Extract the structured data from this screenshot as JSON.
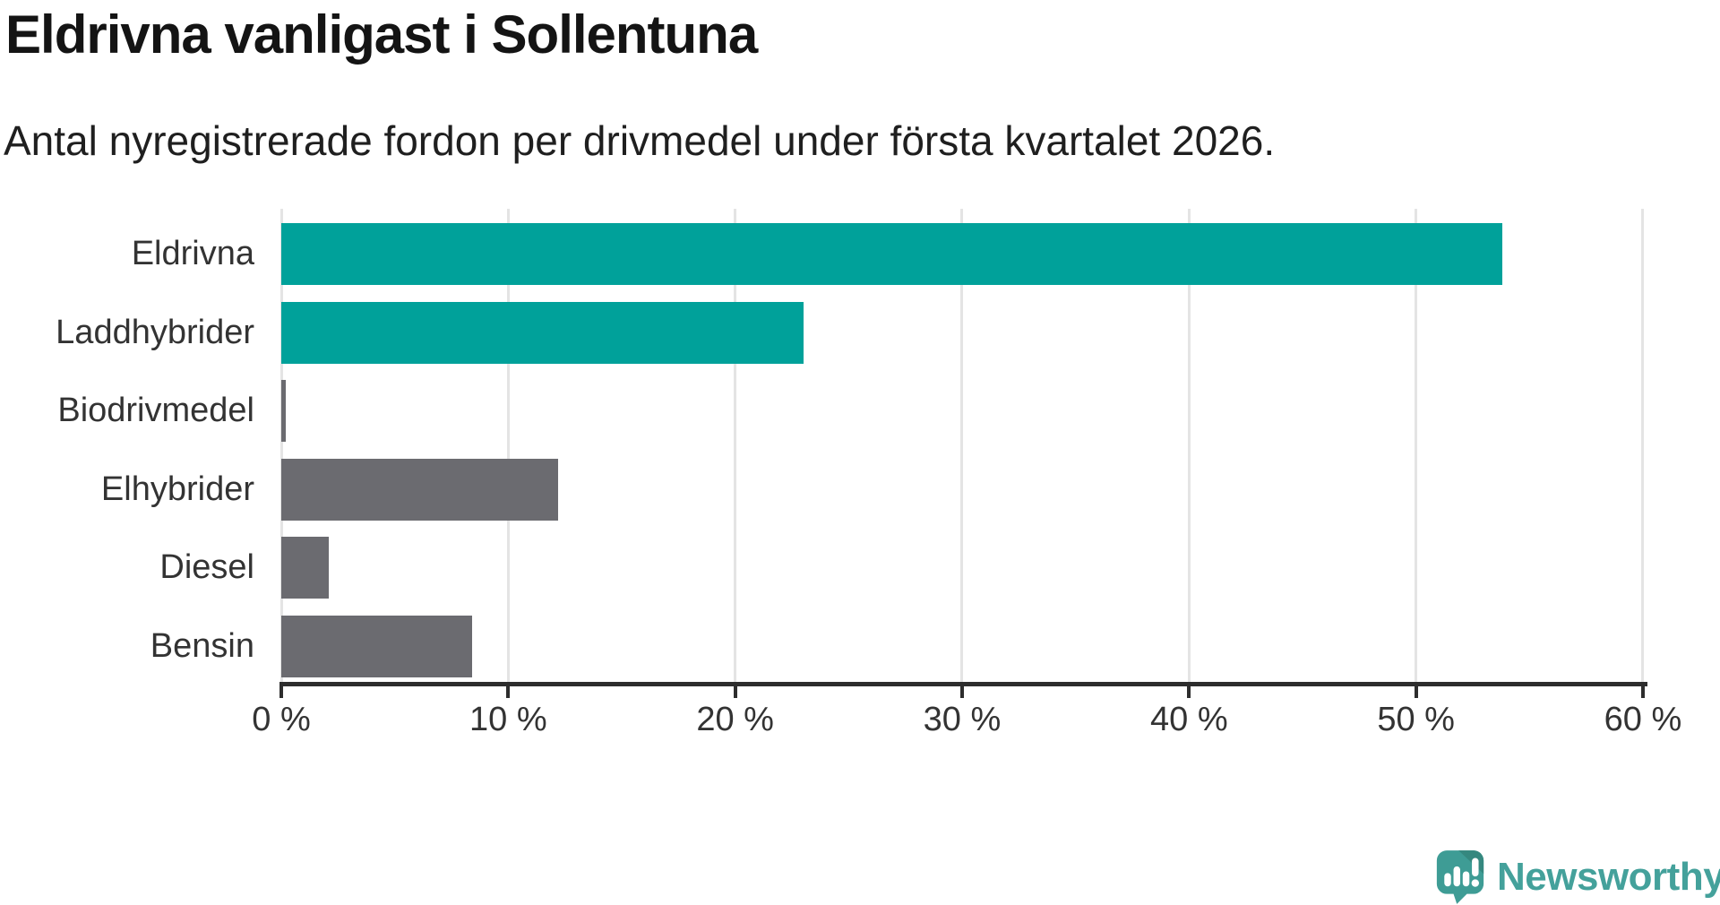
{
  "header": {
    "title": "Eldrivna vanligast i Sollentuna",
    "subtitle": "Antal nyregistrerade fordon per drivmedel under första kvartalet 2026."
  },
  "chart_data": {
    "type": "bar",
    "orientation": "horizontal",
    "title": "Eldrivna vanligast i Sollentuna",
    "subtitle": "Antal nyregistrerade fordon per drivmedel under första kvartalet 2026.",
    "categories": [
      "Eldrivna",
      "Laddhybrider",
      "Biodrivmedel",
      "Elhybrider",
      "Diesel",
      "Bensin"
    ],
    "values": [
      53.8,
      23.0,
      0.2,
      12.2,
      2.1,
      8.4
    ],
    "unit": "%",
    "xlim": [
      0,
      60
    ],
    "x_tick_values": [
      0,
      10,
      20,
      30,
      40,
      50,
      60
    ],
    "x_tick_labels": [
      "0 %",
      "10 %",
      "20 %",
      "30 %",
      "40 %",
      "50 %",
      "60 %"
    ],
    "grid": true,
    "legend": "none",
    "bar_colors": [
      "#00a19a",
      "#00a19a",
      "#6b6b70",
      "#6b6b70",
      "#6b6b70",
      "#6b6b70"
    ],
    "colors": {
      "highlight": "#00a19a",
      "default": "#6b6b70",
      "gridline": "#e4e4e4",
      "axis": "#2d2d2d",
      "text": "#333333"
    }
  },
  "footer": {
    "brand": "Newsworthy",
    "brand_color": "#44a19b",
    "icon": "newsworthy-speech-bubble-chart-icon"
  }
}
